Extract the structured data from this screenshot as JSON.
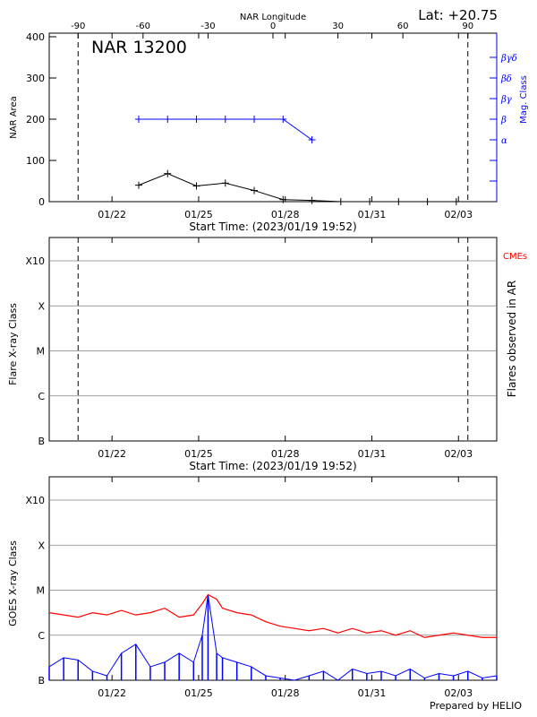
{
  "header": {
    "lat_text": "Lat: +20.75",
    "credit": "Prepared by HELIO"
  },
  "colors": {
    "axis": "#000000",
    "mag_class": "#0000ff",
    "cmes": "#ff0000",
    "goes_long": "#ff0000",
    "goes_short": "#0000ff",
    "grid": "#808080"
  },
  "chart_data": [
    {
      "type": "line",
      "panel": "nar",
      "title": "NAR 13200",
      "xlabel": "Start Time: (2023/01/19 19:52)",
      "ylabel": "NAR Area",
      "y2label": "Mag. Class",
      "top_axis_label": "NAR Longitude",
      "x_ticks": [
        "01/22",
        "01/25",
        "01/28",
        "01/31",
        "02/03"
      ],
      "x_tick_days": [
        2.175,
        5.175,
        8.175,
        11.175,
        14.175
      ],
      "xlim_days": [
        0,
        15.5
      ],
      "top_ticks": [
        "-90",
        "-60",
        "-30",
        "0",
        "30",
        "60",
        "90"
      ],
      "top_tick_days": [
        1.0,
        3.25,
        5.5,
        7.75,
        10.0,
        12.25,
        14.5
      ],
      "y_ticks": [
        "0",
        "100",
        "200",
        "300",
        "400"
      ],
      "y_tick_values": [
        0,
        100,
        200,
        300,
        400
      ],
      "ylim": [
        0,
        400
      ],
      "y2_ticks": [
        "α",
        "β",
        "βγ",
        "βδ",
        "βγδ"
      ],
      "y2_tick_values": [
        150,
        200,
        250,
        300,
        350
      ],
      "y2_minor_values": [
        50,
        100
      ],
      "dashed_line_days": [
        1.0,
        14.5
      ],
      "series": [
        {
          "role": "area",
          "x_days": [
            3.1,
            4.1,
            5.1,
            6.1,
            7.1,
            8.1,
            9.1,
            10.1,
            11.1,
            12.1,
            13.1,
            14.1
          ],
          "values": [
            40,
            68,
            38,
            45,
            27,
            5,
            3,
            0,
            0,
            0,
            0,
            0
          ]
        },
        {
          "role": "mag_class",
          "x_days": [
            3.1,
            4.1,
            5.1,
            6.1,
            7.1,
            8.1,
            9.1
          ],
          "values": [
            200,
            200,
            200,
            200,
            200,
            200,
            150
          ]
        }
      ]
    },
    {
      "type": "scatter",
      "panel": "flares",
      "xlabel": "Start Time: (2023/01/19 19:52)",
      "ylabel": "Flare X-ray Class",
      "y2label": "Flares observed in AR",
      "legend_label": "CMEs",
      "x_ticks": [
        "01/22",
        "01/25",
        "01/28",
        "01/31",
        "02/03"
      ],
      "x_tick_days": [
        2.175,
        5.175,
        8.175,
        11.175,
        14.175
      ],
      "xlim_days": [
        0,
        15.5
      ],
      "y_ticks": [
        "B",
        "C",
        "M",
        "X",
        "X10"
      ],
      "y_tick_levels": [
        0,
        1,
        2,
        3,
        4
      ],
      "ylim_levels": [
        0,
        4.0
      ],
      "dashed_line_days": [
        1.0,
        14.5
      ],
      "points": []
    },
    {
      "type": "line",
      "panel": "goes",
      "xlabel": "",
      "ylabel": "GOES X-ray Class",
      "x_ticks": [
        "01/22",
        "01/25",
        "01/28",
        "01/31",
        "02/03"
      ],
      "x_tick_days": [
        2.175,
        5.175,
        8.175,
        11.175,
        14.175
      ],
      "xlim_days": [
        0,
        15.5
      ],
      "y_ticks": [
        "B",
        "C",
        "M",
        "X",
        "X10"
      ],
      "y_tick_levels": [
        0,
        1,
        2,
        3,
        4
      ],
      "ylim_levels": [
        0,
        4.0
      ],
      "series": [
        {
          "role": "long_channel",
          "x_days": [
            0.0,
            0.5,
            1.0,
            1.5,
            2.0,
            2.5,
            3.0,
            3.5,
            4.0,
            4.5,
            5.0,
            5.3,
            5.5,
            5.8,
            6.0,
            6.5,
            7.0,
            7.5,
            8.0,
            8.5,
            9.0,
            9.5,
            10.0,
            10.5,
            11.0,
            11.5,
            12.0,
            12.5,
            13.0,
            13.5,
            14.0,
            14.5,
            15.0,
            15.5
          ],
          "levels": [
            1.5,
            1.45,
            1.4,
            1.5,
            1.45,
            1.55,
            1.45,
            1.5,
            1.6,
            1.4,
            1.45,
            1.7,
            1.9,
            1.8,
            1.6,
            1.5,
            1.45,
            1.3,
            1.2,
            1.15,
            1.1,
            1.15,
            1.05,
            1.15,
            1.05,
            1.1,
            1.0,
            1.1,
            0.95,
            1.0,
            1.05,
            1.0,
            0.95,
            0.95
          ]
        },
        {
          "role": "short_channel",
          "x_days": [
            0.0,
            0.5,
            1.0,
            1.5,
            2.0,
            2.5,
            3.0,
            3.5,
            4.0,
            4.5,
            5.0,
            5.3,
            5.5,
            5.8,
            6.0,
            6.5,
            7.0,
            7.5,
            8.0,
            8.5,
            9.0,
            9.5,
            10.0,
            10.5,
            11.0,
            11.5,
            12.0,
            12.5,
            13.0,
            13.5,
            14.0,
            14.5,
            15.0,
            15.5
          ],
          "levels": [
            0.3,
            0.5,
            0.45,
            0.2,
            0.1,
            0.6,
            0.8,
            0.3,
            0.4,
            0.6,
            0.4,
            1.0,
            1.9,
            0.6,
            0.5,
            0.4,
            0.3,
            0.1,
            0.05,
            0.0,
            0.1,
            0.2,
            0.0,
            0.25,
            0.15,
            0.2,
            0.1,
            0.25,
            0.05,
            0.15,
            0.1,
            0.2,
            0.05,
            0.1
          ]
        }
      ]
    }
  ]
}
